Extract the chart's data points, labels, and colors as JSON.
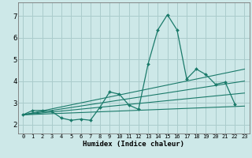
{
  "title": "",
  "xlabel": "Humidex (Indice chaleur)",
  "ylabel": "",
  "background_color": "#cde8e8",
  "grid_color": "#aacccc",
  "line_color": "#1a7a6a",
  "xlim": [
    -0.5,
    23.5
  ],
  "ylim": [
    1.6,
    7.6
  ],
  "xticks": [
    0,
    1,
    2,
    3,
    4,
    5,
    6,
    7,
    8,
    9,
    10,
    11,
    12,
    13,
    14,
    15,
    16,
    17,
    18,
    19,
    20,
    21,
    22,
    23
  ],
  "yticks": [
    2,
    3,
    4,
    5,
    6,
    7
  ],
  "main_series": {
    "x": [
      0,
      1,
      2,
      3,
      4,
      5,
      6,
      7,
      8,
      9,
      10,
      11,
      12,
      13,
      14,
      15,
      16,
      17,
      18,
      19,
      20,
      21,
      22
    ],
    "y": [
      2.45,
      2.65,
      2.65,
      2.6,
      2.3,
      2.2,
      2.25,
      2.2,
      2.8,
      3.5,
      3.4,
      2.9,
      2.7,
      4.8,
      6.35,
      7.05,
      6.35,
      4.1,
      4.55,
      4.3,
      3.85,
      3.95,
      2.95
    ]
  },
  "trend_lines": [
    {
      "x": [
        0,
        23
      ],
      "y": [
        2.45,
        4.55
      ]
    },
    {
      "x": [
        0,
        23
      ],
      "y": [
        2.45,
        4.0
      ]
    },
    {
      "x": [
        0,
        23
      ],
      "y": [
        2.45,
        3.45
      ]
    },
    {
      "x": [
        0,
        23
      ],
      "y": [
        2.45,
        2.85
      ]
    }
  ]
}
